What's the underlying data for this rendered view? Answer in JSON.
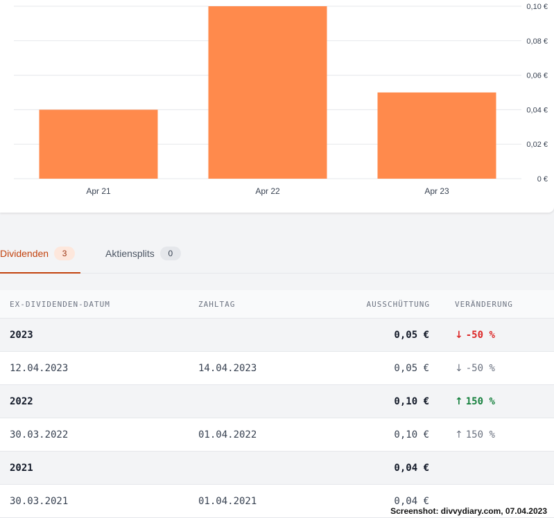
{
  "chart_data": {
    "type": "bar",
    "categories": [
      "Apr 21",
      "Apr 22",
      "Apr 23"
    ],
    "values": [
      0.04,
      0.1,
      0.05
    ],
    "y_ticks": [
      "0 €",
      "0,02 €",
      "0,04 €",
      "0,06 €",
      "0,08 €",
      "0,10 €"
    ],
    "y_tick_values": [
      0,
      0.02,
      0.04,
      0.06,
      0.08,
      0.1
    ],
    "ylim": [
      0,
      0.1
    ],
    "bar_color": "#ff8a4c",
    "grid": true
  },
  "tabs": [
    {
      "label": "Dividenden",
      "count": "3",
      "active": true
    },
    {
      "label": "Aktiensplits",
      "count": "0",
      "active": false
    }
  ],
  "table": {
    "headers": {
      "ex_date": "EX-DIVIDENDEN-DATUM",
      "pay_date": "ZAHLTAG",
      "payout": "AUSSCHÜTTUNG",
      "change": "VERÄNDERUNG"
    },
    "rows": [
      {
        "type": "year",
        "ex_date": "2023",
        "pay_date": "",
        "payout": "0,05 €",
        "change": "-50 %",
        "direction": "down"
      },
      {
        "type": "item",
        "ex_date": "12.04.2023",
        "pay_date": "14.04.2023",
        "payout": "0,05 €",
        "change": "-50 %",
        "direction": "down"
      },
      {
        "type": "year",
        "ex_date": "2022",
        "pay_date": "",
        "payout": "0,10 €",
        "change": "150 %",
        "direction": "up"
      },
      {
        "type": "item",
        "ex_date": "30.03.2022",
        "pay_date": "01.04.2022",
        "payout": "0,10 €",
        "change": "150 %",
        "direction": "up"
      },
      {
        "type": "year",
        "ex_date": "2021",
        "pay_date": "",
        "payout": "0,04 €",
        "change": "",
        "direction": ""
      },
      {
        "type": "item",
        "ex_date": "30.03.2021",
        "pay_date": "01.04.2021",
        "payout": "0,04 €",
        "change": "",
        "direction": ""
      }
    ]
  },
  "watermark": "Screenshot: divvydiary.com, 07.04.2023",
  "colors": {
    "accent": "#c2410c",
    "down": "#dc2626",
    "up": "#15803d"
  }
}
